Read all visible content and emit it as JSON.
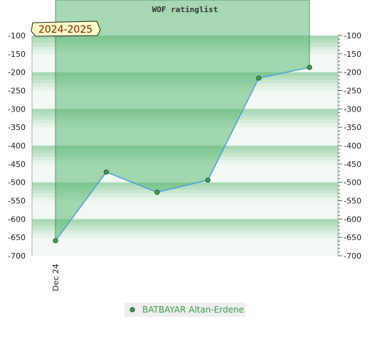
{
  "chart_data": {
    "type": "line",
    "title": "WOF ratinglist",
    "season_badge": "2024-2025",
    "x_tick_labels": [
      "Dec 24"
    ],
    "ylim": [
      -700,
      -100
    ],
    "y_ticks": [
      -100,
      -150,
      -200,
      -250,
      -300,
      -350,
      -400,
      -450,
      -500,
      -550,
      -600,
      -650,
      -700
    ],
    "series": [
      {
        "name": "BATBAYAR Altan-Erdene",
        "values": [
          -659,
          -472,
          -527,
          -494,
          -216,
          -187
        ]
      }
    ],
    "legend_position": "bottom-center",
    "colors": {
      "line": "#4aa0d8",
      "marker_fill": "#3e9a50",
      "area_fill": "#5cb874",
      "band_dark": "#a8d8b4",
      "band_light": "#f2f9f4",
      "badge_bg": "#ffffc8"
    }
  }
}
